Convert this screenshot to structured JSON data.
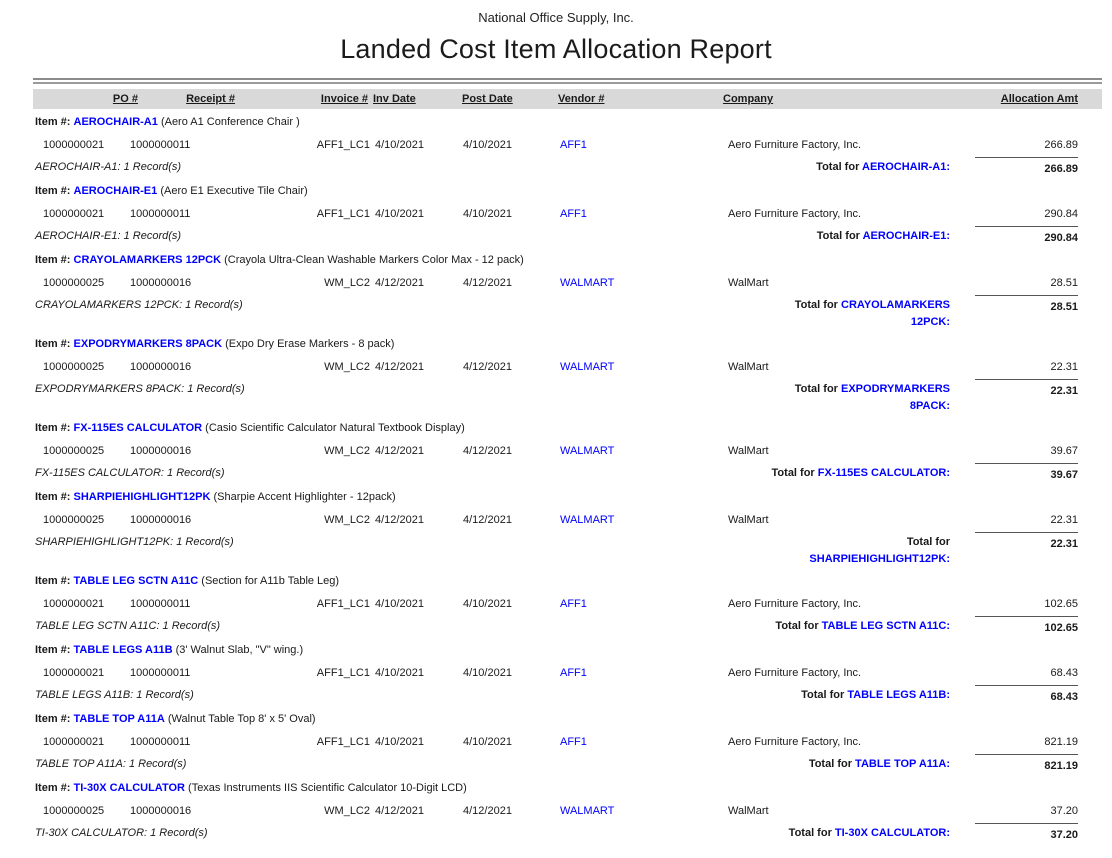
{
  "report": {
    "company_name": "National Office Supply, Inc.",
    "title": "Landed Cost Item Allocation Report"
  },
  "colors": {
    "accent_blue": "#0000FF",
    "header_bg": "#D9D9D9"
  },
  "table": {
    "columns": [
      "PO #",
      "Receipt #",
      "Invoice #",
      "Inv Date",
      "Post Date",
      "Vendor #",
      "Company",
      "Allocation Amt"
    ],
    "item_label": "Item #:"
  },
  "items": [
    {
      "code": "AEROCHAIR-A1",
      "desc": "(Aero A1 Conference Chair )",
      "row": {
        "po": "1000000021",
        "receipt": "1000000011",
        "invoice": "AFF1_LC1",
        "inv_date": "4/10/2021",
        "post_date": "4/10/2021",
        "vendor": "AFF1",
        "company": "Aero Furniture Factory, Inc.",
        "amount": "266.89"
      },
      "records": "AEROCHAIR-A1: 1 Record(s)",
      "total_amount": "266.89",
      "total_lines": [
        [
          {
            "text": "Total for ",
            "blue": false
          },
          {
            "text": "AEROCHAIR-A1:",
            "blue": true
          }
        ]
      ]
    },
    {
      "code": "AEROCHAIR-E1",
      "desc": "(Aero E1 Executive Tile Chair)",
      "row": {
        "po": "1000000021",
        "receipt": "1000000011",
        "invoice": "AFF1_LC1",
        "inv_date": "4/10/2021",
        "post_date": "4/10/2021",
        "vendor": "AFF1",
        "company": "Aero Furniture Factory, Inc.",
        "amount": "290.84"
      },
      "records": "AEROCHAIR-E1: 1 Record(s)",
      "total_amount": "290.84",
      "total_lines": [
        [
          {
            "text": "Total for ",
            "blue": false
          },
          {
            "text": "AEROCHAIR-E1:",
            "blue": true
          }
        ]
      ]
    },
    {
      "code": "CRAYOLAMARKERS 12PCK",
      "desc": "(Crayola Ultra-Clean Washable Markers Color Max - 12 pack)",
      "row": {
        "po": "1000000025",
        "receipt": "1000000016",
        "invoice": "WM_LC2",
        "inv_date": "4/12/2021",
        "post_date": "4/12/2021",
        "vendor": "WALMART",
        "company": "WalMart",
        "amount": "28.51"
      },
      "records": "CRAYOLAMARKERS 12PCK: 1 Record(s)",
      "total_amount": "28.51",
      "total_lines": [
        [
          {
            "text": "Total for ",
            "blue": false
          },
          {
            "text": "CRAYOLAMARKERS",
            "blue": true
          }
        ],
        [
          {
            "text": "12PCK:",
            "blue": true
          }
        ]
      ]
    },
    {
      "code": "EXPODRYMARKERS 8PACK",
      "desc": "(Expo Dry Erase Markers - 8 pack)",
      "row": {
        "po": "1000000025",
        "receipt": "1000000016",
        "invoice": "WM_LC2",
        "inv_date": "4/12/2021",
        "post_date": "4/12/2021",
        "vendor": "WALMART",
        "company": "WalMart",
        "amount": "22.31"
      },
      "records": "EXPODRYMARKERS 8PACK: 1 Record(s)",
      "total_amount": "22.31",
      "total_lines": [
        [
          {
            "text": "Total for ",
            "blue": false
          },
          {
            "text": "EXPODRYMARKERS",
            "blue": true
          }
        ],
        [
          {
            "text": "8PACK:",
            "blue": true
          }
        ]
      ]
    },
    {
      "code": "FX-115ES CALCULATOR",
      "desc": "(Casio Scientific Calculator Natural Textbook Display)",
      "row": {
        "po": "1000000025",
        "receipt": "1000000016",
        "invoice": "WM_LC2",
        "inv_date": "4/12/2021",
        "post_date": "4/12/2021",
        "vendor": "WALMART",
        "company": "WalMart",
        "amount": "39.67"
      },
      "records": "FX-115ES CALCULATOR: 1 Record(s)",
      "total_amount": "39.67",
      "total_lines": [
        [
          {
            "text": "Total for ",
            "blue": false
          },
          {
            "text": "FX-115ES CALCULATOR:",
            "blue": true
          }
        ]
      ]
    },
    {
      "code": "SHARPIEHIGHLIGHT12PK",
      "desc": "(Sharpie Accent Highlighter - 12pack)",
      "row": {
        "po": "1000000025",
        "receipt": "1000000016",
        "invoice": "WM_LC2",
        "inv_date": "4/12/2021",
        "post_date": "4/12/2021",
        "vendor": "WALMART",
        "company": "WalMart",
        "amount": "22.31"
      },
      "records": "SHARPIEHIGHLIGHT12PK: 1 Record(s)",
      "total_amount": "22.31",
      "total_lines": [
        [
          {
            "text": "Total for",
            "blue": false
          }
        ],
        [
          {
            "text": "SHARPIEHIGHLIGHT12PK:",
            "blue": true
          }
        ]
      ]
    },
    {
      "code": "TABLE LEG SCTN A11C",
      "desc": "(Section for A11b Table Leg)",
      "row": {
        "po": "1000000021",
        "receipt": "1000000011",
        "invoice": "AFF1_LC1",
        "inv_date": "4/10/2021",
        "post_date": "4/10/2021",
        "vendor": "AFF1",
        "company": "Aero Furniture Factory, Inc.",
        "amount": "102.65"
      },
      "records": "TABLE LEG SCTN A11C: 1 Record(s)",
      "total_amount": "102.65",
      "total_lines": [
        [
          {
            "text": "Total for ",
            "blue": false
          },
          {
            "text": "TABLE LEG SCTN A11C:",
            "blue": true
          }
        ]
      ]
    },
    {
      "code": "TABLE LEGS A11B",
      "desc": "(3' Walnut Slab, \"V\" wing.)",
      "row": {
        "po": "1000000021",
        "receipt": "1000000011",
        "invoice": "AFF1_LC1",
        "inv_date": "4/10/2021",
        "post_date": "4/10/2021",
        "vendor": "AFF1",
        "company": "Aero Furniture Factory, Inc.",
        "amount": "68.43"
      },
      "records": "TABLE LEGS A11B: 1 Record(s)",
      "total_amount": "68.43",
      "total_lines": [
        [
          {
            "text": "Total for ",
            "blue": false
          },
          {
            "text": "TABLE LEGS A11B:",
            "blue": true
          }
        ]
      ]
    },
    {
      "code": "TABLE TOP A11A",
      "desc": "(Walnut Table Top 8' x 5' Oval)",
      "row": {
        "po": "1000000021",
        "receipt": "1000000011",
        "invoice": "AFF1_LC1",
        "inv_date": "4/10/2021",
        "post_date": "4/10/2021",
        "vendor": "AFF1",
        "company": "Aero Furniture Factory, Inc.",
        "amount": "821.19"
      },
      "records": "TABLE TOP A11A: 1 Record(s)",
      "total_amount": "821.19",
      "total_lines": [
        [
          {
            "text": "Total for ",
            "blue": false
          },
          {
            "text": "TABLE TOP A11A:",
            "blue": true
          }
        ]
      ]
    },
    {
      "code": "TI-30X CALCULATOR",
      "desc": "(Texas Instruments IIS Scientific Calculator 10-Digit LCD)",
      "row": {
        "po": "1000000025",
        "receipt": "1000000016",
        "invoice": "WM_LC2",
        "inv_date": "4/12/2021",
        "post_date": "4/12/2021",
        "vendor": "WALMART",
        "company": "WalMart",
        "amount": "37.20"
      },
      "records": "TI-30X CALCULATOR: 1 Record(s)",
      "total_amount": "37.20",
      "total_lines": [
        [
          {
            "text": "Total for ",
            "blue": false
          },
          {
            "text": "TI-30X CALCULATOR:",
            "blue": true
          }
        ]
      ]
    }
  ]
}
